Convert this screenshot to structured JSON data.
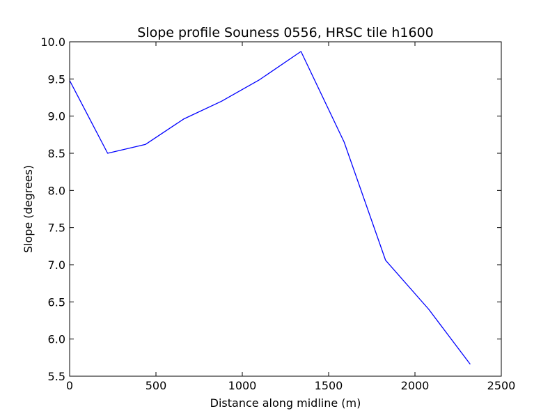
{
  "chart_data": {
    "type": "line",
    "title": "Slope profile Souness 0556, HRSC tile h1600",
    "xlabel": "Distance along midline (m)",
    "ylabel": "Slope (degrees)",
    "xlim": [
      0,
      2500
    ],
    "ylim": [
      5.5,
      10.0
    ],
    "xticks": [
      0,
      500,
      1000,
      1500,
      2000,
      2500
    ],
    "xtick_labels": [
      "0",
      "500",
      "1000",
      "1500",
      "2000",
      "2500"
    ],
    "yticks": [
      5.5,
      6.0,
      6.5,
      7.0,
      7.5,
      8.0,
      8.5,
      9.0,
      9.5,
      10.0
    ],
    "ytick_labels": [
      "5.5",
      "6.0",
      "6.5",
      "7.0",
      "7.5",
      "8.0",
      "8.5",
      "9.0",
      "9.5",
      "10.0"
    ],
    "grid": false,
    "series": [
      {
        "color": "#0000ff",
        "x": [
          0,
          220,
          440,
          660,
          880,
          1100,
          1340,
          1590,
          1830,
          2080,
          2320
        ],
        "y": [
          9.48,
          8.5,
          8.62,
          8.96,
          9.2,
          9.49,
          9.87,
          8.65,
          7.06,
          6.4,
          5.66
        ]
      }
    ]
  }
}
